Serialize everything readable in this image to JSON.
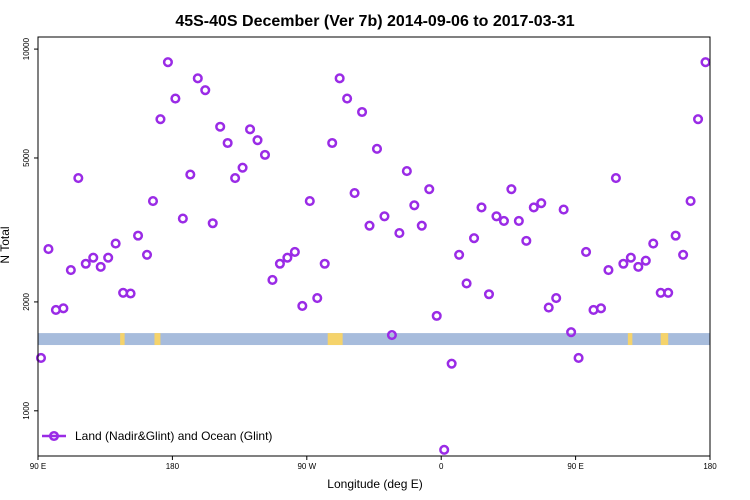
{
  "chart_data": {
    "type": "scatter",
    "title": "45S-40S December (Ver 7b)   2014-09-06 to 2017-03-31",
    "xlabel": "Longitude (deg E)",
    "ylabel": "N Total",
    "x_ticks": [
      {
        "value": 90,
        "label": "90 E"
      },
      {
        "value": 180,
        "label": "180"
      },
      {
        "value": 270,
        "label": "90 W"
      },
      {
        "value": 360,
        "label": "0"
      },
      {
        "value": 450,
        "label": "90 E"
      },
      {
        "value": 540,
        "label": "180"
      }
    ],
    "y_ticks": [
      {
        "value": 1000,
        "label": "1000"
      },
      {
        "value": 2000,
        "label": "2000"
      },
      {
        "value": 5000,
        "label": "5000"
      },
      {
        "value": 10000,
        "label": "10000"
      }
    ],
    "xlim": [
      90,
      540
    ],
    "ylim": [
      750,
      10800
    ],
    "y_scale": "log",
    "grid": false,
    "legend_position": "bottom-left",
    "marker_color": "#9a2be6",
    "band": {
      "y_low": 1520,
      "y_high": 1640,
      "color": "#a7bcdc",
      "land_color": "#f5d36b"
    },
    "land_segments": [
      [
        145,
        148
      ],
      [
        168,
        172
      ],
      [
        284,
        294
      ],
      [
        485,
        488
      ],
      [
        507,
        512
      ]
    ],
    "series": [
      {
        "name": "Land (Nadir&Glint) and Ocean (Glint)",
        "points": [
          [
            92,
            1400
          ],
          [
            97,
            2800
          ],
          [
            102,
            1900
          ],
          [
            107,
            1920
          ],
          [
            112,
            2450
          ],
          [
            117,
            4400
          ],
          [
            122,
            2550
          ],
          [
            127,
            2650
          ],
          [
            132,
            2500
          ],
          [
            137,
            2650
          ],
          [
            142,
            2900
          ],
          [
            147,
            2120
          ],
          [
            152,
            2110
          ],
          [
            157,
            3050
          ],
          [
            163,
            2700
          ],
          [
            167,
            3800
          ],
          [
            172,
            6400
          ],
          [
            177,
            9200
          ],
          [
            182,
            7300
          ],
          [
            187,
            3400
          ],
          [
            192,
            4500
          ],
          [
            197,
            8300
          ],
          [
            202,
            7700
          ],
          [
            207,
            3300
          ],
          [
            212,
            6100
          ],
          [
            217,
            5500
          ],
          [
            222,
            4400
          ],
          [
            227,
            4700
          ],
          [
            232,
            6000
          ],
          [
            237,
            5600
          ],
          [
            242,
            5100
          ],
          [
            247,
            2300
          ],
          [
            252,
            2550
          ],
          [
            257,
            2650
          ],
          [
            262,
            2750
          ],
          [
            267,
            1950
          ],
          [
            272,
            3800
          ],
          [
            277,
            2050
          ],
          [
            282,
            2550
          ],
          [
            287,
            5500
          ],
          [
            292,
            8300
          ],
          [
            297,
            7300
          ],
          [
            302,
            4000
          ],
          [
            307,
            6700
          ],
          [
            312,
            3250
          ],
          [
            317,
            5300
          ],
          [
            322,
            3450
          ],
          [
            327,
            1620
          ],
          [
            332,
            3100
          ],
          [
            337,
            4600
          ],
          [
            342,
            3700
          ],
          [
            347,
            3250
          ],
          [
            352,
            4100
          ],
          [
            357,
            1830
          ],
          [
            362,
            780
          ],
          [
            367,
            1350
          ],
          [
            372,
            2700
          ],
          [
            377,
            2250
          ],
          [
            382,
            3000
          ],
          [
            387,
            3650
          ],
          [
            392,
            2100
          ],
          [
            397,
            3450
          ],
          [
            402,
            3350
          ],
          [
            407,
            4100
          ],
          [
            412,
            3350
          ],
          [
            417,
            2950
          ],
          [
            422,
            3650
          ],
          [
            427,
            3750
          ],
          [
            432,
            1930
          ],
          [
            437,
            2050
          ],
          [
            442,
            3600
          ],
          [
            447,
            1650
          ],
          [
            452,
            1400
          ],
          [
            457,
            2750
          ],
          [
            462,
            1900
          ],
          [
            467,
            1920
          ],
          [
            472,
            2450
          ],
          [
            477,
            4400
          ],
          [
            482,
            2550
          ],
          [
            487,
            2650
          ],
          [
            492,
            2500
          ],
          [
            497,
            2600
          ],
          [
            502,
            2900
          ],
          [
            507,
            2120
          ],
          [
            512,
            2120
          ],
          [
            517,
            3050
          ],
          [
            522,
            2700
          ],
          [
            527,
            3800
          ],
          [
            532,
            6400
          ],
          [
            537,
            9200
          ]
        ]
      }
    ]
  }
}
